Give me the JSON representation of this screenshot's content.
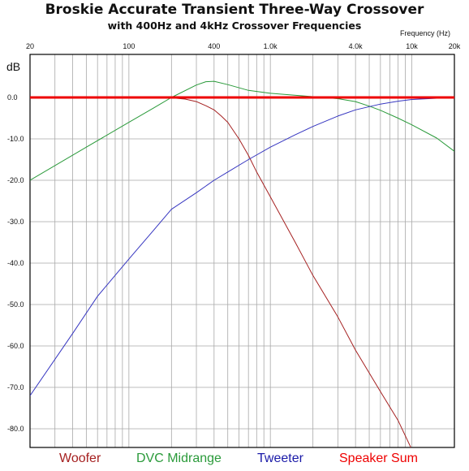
{
  "chart_data": {
    "type": "line",
    "title": "Broskie Accurate Transient Three-Way Crossover",
    "subtitle": "with 400Hz and 4kHz Crossover Frequencies",
    "xlabel": "Frequency   (Hz)",
    "ylabel": "dB",
    "x_scale": "log",
    "xlim": [
      20,
      20000
    ],
    "ylim": [
      -85,
      10
    ],
    "x_tick_labels": [
      {
        "value": 20,
        "label": "20"
      },
      {
        "value": 100,
        "label": "100"
      },
      {
        "value": 400,
        "label": "400"
      },
      {
        "value": 1000,
        "label": "1.0k"
      },
      {
        "value": 4000,
        "label": "4.0k"
      },
      {
        "value": 10000,
        "label": "10k"
      },
      {
        "value": 20000,
        "label": "20k"
      }
    ],
    "y_ticks": [
      0,
      -10,
      -20,
      -30,
      -40,
      -50,
      -60,
      -70,
      -80
    ],
    "y_tick_labels": [
      "0.0",
      "-10.0",
      "-20.0",
      "-30.0",
      "-40.0",
      "-50.0",
      "-60.0",
      "-70.0",
      "-80.0"
    ],
    "grid": true,
    "legend_position": "bottom",
    "series": [
      {
        "name": "Woofer",
        "color": "#a52020",
        "x": [
          20,
          100,
          200,
          250,
          300,
          350,
          400,
          450,
          500,
          600,
          700,
          800,
          1000,
          1500,
          2000,
          3000,
          4000,
          6000,
          8000,
          10000
        ],
        "y": [
          0,
          0,
          -0.1,
          -0.4,
          -1,
          -2,
          -3,
          -4.5,
          -6,
          -10,
          -14,
          -18,
          -24,
          -35,
          -43,
          -53,
          -61,
          -71,
          -78,
          -85
        ]
      },
      {
        "name": "DVC Midrange",
        "color": "#2a9a3a",
        "x": [
          20,
          50,
          100,
          150,
          200,
          300,
          350,
          400,
          500,
          700,
          1000,
          2000,
          3000,
          4000,
          5000,
          6000,
          8000,
          10000,
          15000,
          20000
        ],
        "y": [
          -20,
          -12,
          -6,
          -2.5,
          0,
          3,
          3.8,
          3.9,
          3.1,
          1.7,
          1,
          0.2,
          -0.3,
          -1,
          -2.1,
          -3.1,
          -5,
          -6.6,
          -9.8,
          -13
        ]
      },
      {
        "name": "Tweeter",
        "color": "#3535c0",
        "x": [
          20,
          40,
          60,
          100,
          150,
          200,
          300,
          400,
          500,
          700,
          1000,
          1500,
          2000,
          3000,
          4000,
          6000,
          8000,
          10000,
          15000,
          20000
        ],
        "y": [
          -72,
          -57,
          -48,
          -39,
          -32,
          -27,
          -23,
          -20,
          -18,
          -15,
          -12,
          -9,
          -7,
          -4.5,
          -3,
          -1.6,
          -0.9,
          -0.5,
          -0.2,
          -0.1
        ]
      },
      {
        "name": "Speaker Sum",
        "color": "#ee0000",
        "x": [
          20,
          20000
        ],
        "y": [
          0,
          0
        ]
      }
    ]
  }
}
